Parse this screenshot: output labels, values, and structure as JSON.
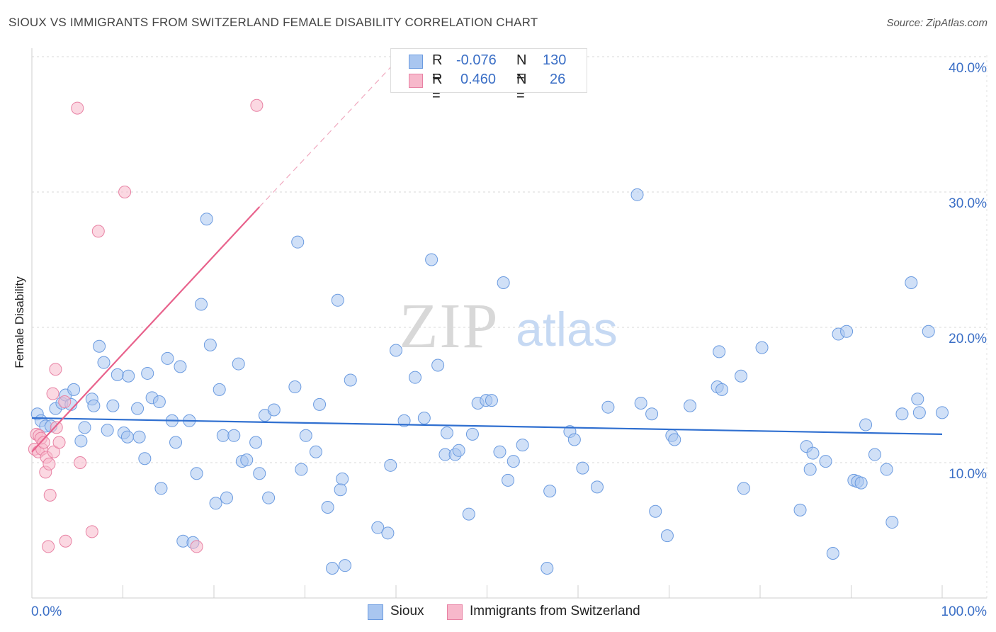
{
  "title": "SIOUX VS IMMIGRANTS FROM SWITZERLAND FEMALE DISABILITY CORRELATION CHART",
  "source": "Source: ZipAtlas.com",
  "watermark": {
    "bold": "ZIP",
    "light": "atlas"
  },
  "stats": [
    {
      "r_label": "R =",
      "r_value": "-0.076",
      "n_label": "N =",
      "n_value": "130",
      "color": "#a9c6f0",
      "border": "#6b9be0"
    },
    {
      "r_label": "R =",
      "r_value": "0.460",
      "n_label": "N =",
      "n_value": "26",
      "color": "#f7b8cb",
      "border": "#e882a4"
    }
  ],
  "legend": [
    {
      "label": "Sioux",
      "color": "#a9c6f0",
      "border": "#6b9be0"
    },
    {
      "label": "Immigrants from Switzerland",
      "color": "#f7b8cb",
      "border": "#e882a4"
    }
  ],
  "chart_data": {
    "type": "scatter",
    "title": "SIOUX VS IMMIGRANTS FROM SWITZERLAND FEMALE DISABILITY CORRELATION CHART",
    "xlabel": "",
    "ylabel": "Female Disability",
    "xlim": [
      0,
      100
    ],
    "ylim": [
      0,
      40
    ],
    "x_tick_labels": [
      "0.0%",
      "100.0%"
    ],
    "y_ticks": [
      10,
      20,
      30,
      40
    ],
    "y_tick_labels": [
      "10.0%",
      "20.0%",
      "30.0%",
      "40.0%"
    ],
    "grid": true,
    "legend_position": "bottom",
    "series": [
      {
        "name": "Sioux",
        "color": "#6b9be0",
        "fill": "#a9c6f0",
        "trend_color": "#2f6fd0",
        "trend": {
          "x": [
            0,
            100
          ],
          "y": [
            13.3,
            12.1
          ]
        },
        "points": [
          [
            0.6,
            13.6
          ],
          [
            1.0,
            13.1
          ],
          [
            1.5,
            12.7
          ],
          [
            2.1,
            12.7
          ],
          [
            2.6,
            14.0
          ],
          [
            3.3,
            14.4
          ],
          [
            3.7,
            15.0
          ],
          [
            4.3,
            14.3
          ],
          [
            4.6,
            15.4
          ],
          [
            5.4,
            11.6
          ],
          [
            5.8,
            12.6
          ],
          [
            6.6,
            14.7
          ],
          [
            6.8,
            14.2
          ],
          [
            7.4,
            18.6
          ],
          [
            7.9,
            17.4
          ],
          [
            8.3,
            12.4
          ],
          [
            8.9,
            14.2
          ],
          [
            9.4,
            16.5
          ],
          [
            10.1,
            12.2
          ],
          [
            10.5,
            11.9
          ],
          [
            10.6,
            16.4
          ],
          [
            11.6,
            14.0
          ],
          [
            11.8,
            11.9
          ],
          [
            12.4,
            10.3
          ],
          [
            12.7,
            16.6
          ],
          [
            13.2,
            14.8
          ],
          [
            14.0,
            14.5
          ],
          [
            14.2,
            8.1
          ],
          [
            14.9,
            17.7
          ],
          [
            15.4,
            13.1
          ],
          [
            15.8,
            11.5
          ],
          [
            16.3,
            17.1
          ],
          [
            16.6,
            4.2
          ],
          [
            17.3,
            13.1
          ],
          [
            17.7,
            4.1
          ],
          [
            18.1,
            9.2
          ],
          [
            18.6,
            21.7
          ],
          [
            19.2,
            28.0
          ],
          [
            19.6,
            18.7
          ],
          [
            20.2,
            7.0
          ],
          [
            20.6,
            15.4
          ],
          [
            21.0,
            12.0
          ],
          [
            21.4,
            7.4
          ],
          [
            22.2,
            12.0
          ],
          [
            22.7,
            17.3
          ],
          [
            23.1,
            10.1
          ],
          [
            23.6,
            10.2
          ],
          [
            24.6,
            11.5
          ],
          [
            25.0,
            9.2
          ],
          [
            25.6,
            13.5
          ],
          [
            26.0,
            7.4
          ],
          [
            26.6,
            13.9
          ],
          [
            28.9,
            15.6
          ],
          [
            29.2,
            26.3
          ],
          [
            29.6,
            9.5
          ],
          [
            30.1,
            12.0
          ],
          [
            31.2,
            10.8
          ],
          [
            31.6,
            14.3
          ],
          [
            32.5,
            6.7
          ],
          [
            33.0,
            2.2
          ],
          [
            33.6,
            22.0
          ],
          [
            33.9,
            8.0
          ],
          [
            34.4,
            2.4
          ],
          [
            35.0,
            16.1
          ],
          [
            38.0,
            5.2
          ],
          [
            39.1,
            4.8
          ],
          [
            39.4,
            9.8
          ],
          [
            40.0,
            18.3
          ],
          [
            40.9,
            13.1
          ],
          [
            42.1,
            16.3
          ],
          [
            43.1,
            13.3
          ],
          [
            43.9,
            25.0
          ],
          [
            44.6,
            17.2
          ],
          [
            45.4,
            10.6
          ],
          [
            45.6,
            12.2
          ],
          [
            46.5,
            10.6
          ],
          [
            46.9,
            10.9
          ],
          [
            48.0,
            6.2
          ],
          [
            49.0,
            14.4
          ],
          [
            49.9,
            14.6
          ],
          [
            50.5,
            14.6
          ],
          [
            51.4,
            10.8
          ],
          [
            51.8,
            23.3
          ],
          [
            52.3,
            8.7
          ],
          [
            52.9,
            10.1
          ],
          [
            53.9,
            11.3
          ],
          [
            56.6,
            2.2
          ],
          [
            56.9,
            7.9
          ],
          [
            59.1,
            12.3
          ],
          [
            59.6,
            11.7
          ],
          [
            60.5,
            9.6
          ],
          [
            62.1,
            8.2
          ],
          [
            63.3,
            14.1
          ],
          [
            66.5,
            29.8
          ],
          [
            66.9,
            14.4
          ],
          [
            68.1,
            13.6
          ],
          [
            68.5,
            6.4
          ],
          [
            69.8,
            4.6
          ],
          [
            70.3,
            12.0
          ],
          [
            70.6,
            11.7
          ],
          [
            72.3,
            14.2
          ],
          [
            75.3,
            15.6
          ],
          [
            75.5,
            18.2
          ],
          [
            75.8,
            15.4
          ],
          [
            77.9,
            16.4
          ],
          [
            78.2,
            8.1
          ],
          [
            80.2,
            18.5
          ],
          [
            84.4,
            6.5
          ],
          [
            85.1,
            11.2
          ],
          [
            85.5,
            9.5
          ],
          [
            85.8,
            10.7
          ],
          [
            87.2,
            10.1
          ],
          [
            88.0,
            3.3
          ],
          [
            88.6,
            19.5
          ],
          [
            89.5,
            19.7
          ],
          [
            90.3,
            8.7
          ],
          [
            90.7,
            8.6
          ],
          [
            91.1,
            8.5
          ],
          [
            91.6,
            12.8
          ],
          [
            92.6,
            10.6
          ],
          [
            93.9,
            9.5
          ],
          [
            94.5,
            5.6
          ],
          [
            95.6,
            13.6
          ],
          [
            96.6,
            23.3
          ],
          [
            97.3,
            14.7
          ],
          [
            97.5,
            13.7
          ],
          [
            98.5,
            19.7
          ],
          [
            100.0,
            13.7
          ],
          [
            48.4,
            12.1
          ],
          [
            34.1,
            8.8
          ]
        ]
      },
      {
        "name": "Immigrants from Switzerland",
        "color": "#e882a4",
        "fill": "#f7b8cb",
        "trend_color": "#e8628c",
        "trend": {
          "x": [
            0,
            25
          ],
          "y": [
            10.8,
            28.9
          ]
        },
        "trend_dashed": {
          "x": [
            25,
            40.5
          ],
          "y": [
            28.9,
            40.0
          ]
        },
        "points": [
          [
            0.3,
            11.0
          ],
          [
            0.5,
            12.1
          ],
          [
            0.7,
            10.8
          ],
          [
            0.8,
            12.0
          ],
          [
            1.0,
            11.8
          ],
          [
            1.1,
            11.0
          ],
          [
            1.3,
            11.5
          ],
          [
            1.5,
            9.3
          ],
          [
            1.6,
            10.4
          ],
          [
            1.9,
            9.9
          ],
          [
            2.0,
            7.6
          ],
          [
            2.3,
            15.1
          ],
          [
            2.4,
            10.8
          ],
          [
            2.6,
            16.9
          ],
          [
            2.7,
            12.6
          ],
          [
            3.0,
            11.5
          ],
          [
            3.6,
            14.5
          ],
          [
            5.0,
            36.2
          ],
          [
            5.3,
            10.0
          ],
          [
            6.6,
            4.9
          ],
          [
            7.3,
            27.1
          ],
          [
            10.2,
            30.0
          ],
          [
            1.8,
            3.8
          ],
          [
            3.7,
            4.2
          ],
          [
            18.1,
            3.8
          ],
          [
            24.7,
            36.4
          ]
        ]
      }
    ]
  }
}
